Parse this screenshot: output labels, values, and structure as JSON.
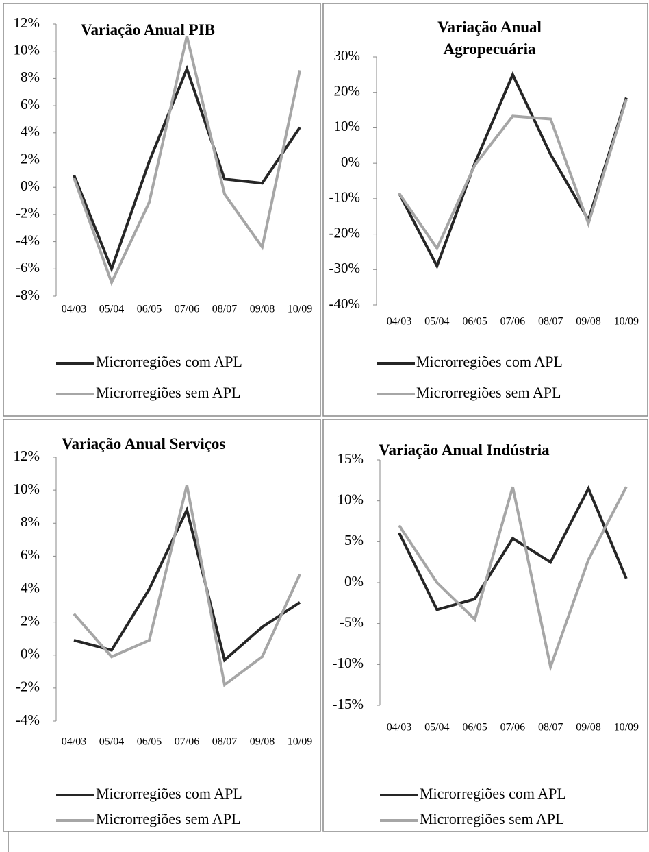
{
  "chart_data": [
    {
      "type": "line",
      "title": "Variação Anual PIB",
      "categories": [
        "04/03",
        "05/04",
        "06/05",
        "07/06",
        "08/07",
        "09/08",
        "10/09"
      ],
      "series": [
        {
          "name": "Microrregiões com APL",
          "color": "#262626",
          "values": [
            0.9,
            -6.0,
            1.9,
            8.7,
            0.6,
            0.3,
            4.4
          ]
        },
        {
          "name": "Microrregiões sem APL",
          "color": "#a6a6a6",
          "values": [
            0.7,
            -7.0,
            -1.1,
            11.1,
            -0.5,
            -4.4,
            8.6
          ]
        }
      ],
      "ylim": [
        -8,
        12
      ],
      "yticks": [
        {
          "value": -8,
          "label": "-8%"
        },
        {
          "value": -6,
          "label": "-6%"
        },
        {
          "value": -4,
          "label": "-4%"
        },
        {
          "value": -2,
          "label": "-2%"
        },
        {
          "value": 0,
          "label": "0%"
        },
        {
          "value": 2,
          "label": "2%"
        },
        {
          "value": 4,
          "label": "4%"
        },
        {
          "value": 6,
          "label": "6%"
        },
        {
          "value": 8,
          "label": "8%"
        },
        {
          "value": 10,
          "label": "10%"
        },
        {
          "value": 12,
          "label": "12%"
        }
      ],
      "legend": "bottom"
    },
    {
      "type": "line",
      "title": "Variação Anual Agropecuária",
      "categories": [
        "04/03",
        "05/04",
        "06/05",
        "07/06",
        "08/07",
        "09/08",
        "10/09"
      ],
      "series": [
        {
          "name": "Microrregiões com APL",
          "color": "#262626",
          "values": [
            -8.5,
            -29,
            0,
            25,
            2.5,
            -16,
            18.5
          ]
        },
        {
          "name": "Microrregiões sem APL",
          "color": "#a6a6a6",
          "values": [
            -8.5,
            -24,
            -0.5,
            13.3,
            12.5,
            -17,
            18
          ]
        }
      ],
      "ylim": [
        -40,
        30
      ],
      "yticks": [
        {
          "value": -40,
          "label": "-40%"
        },
        {
          "value": -30,
          "label": "-30%"
        },
        {
          "value": -20,
          "label": "-20%"
        },
        {
          "value": -10,
          "label": "-10%"
        },
        {
          "value": 0,
          "label": "0%"
        },
        {
          "value": 10,
          "label": "10%"
        },
        {
          "value": 20,
          "label": "20%"
        },
        {
          "value": 30,
          "label": "30%"
        }
      ],
      "legend": "bottom"
    },
    {
      "type": "line",
      "title": "Variação Anual Serviços",
      "categories": [
        "04/03",
        "05/04",
        "06/05",
        "07/06",
        "08/07",
        "09/08",
        "10/09"
      ],
      "series": [
        {
          "name": "Microrregiões com APL",
          "color": "#262626",
          "values": [
            0.9,
            0.3,
            4.0,
            8.8,
            -0.3,
            1.7,
            3.2
          ]
        },
        {
          "name": "Microrregiões sem APL",
          "color": "#a6a6a6",
          "values": [
            2.5,
            -0.1,
            0.9,
            10.3,
            -1.8,
            -0.1,
            4.9
          ]
        }
      ],
      "ylim": [
        -4,
        12
      ],
      "yticks": [
        {
          "value": -4,
          "label": "-4%"
        },
        {
          "value": -2,
          "label": "-2%"
        },
        {
          "value": 0,
          "label": "0%"
        },
        {
          "value": 2,
          "label": "2%"
        },
        {
          "value": 4,
          "label": "4%"
        },
        {
          "value": 6,
          "label": "6%"
        },
        {
          "value": 8,
          "label": "8%"
        },
        {
          "value": 10,
          "label": "10%"
        },
        {
          "value": 12,
          "label": "12%"
        }
      ],
      "legend": "bottom"
    },
    {
      "type": "line",
      "title": "Variação Anual Indústria",
      "categories": [
        "04/03",
        "05/04",
        "06/05",
        "07/06",
        "08/07",
        "09/08",
        "10/09"
      ],
      "series": [
        {
          "name": "Microrregiões com APL",
          "color": "#262626",
          "values": [
            6.1,
            -3.3,
            -2.0,
            5.4,
            2.5,
            11.5,
            0.5
          ]
        },
        {
          "name": "Microrregiões sem APL",
          "color": "#a6a6a6",
          "values": [
            7.0,
            0.0,
            -4.5,
            11.7,
            -10.3,
            2.8,
            11.7
          ]
        }
      ],
      "ylim": [
        -15,
        15
      ],
      "yticks": [
        {
          "value": -15,
          "label": "-15%"
        },
        {
          "value": -10,
          "label": "-10%"
        },
        {
          "value": -5,
          "label": "-5%"
        },
        {
          "value": 0,
          "label": "0%"
        },
        {
          "value": 5,
          "label": "5%"
        },
        {
          "value": 10,
          "label": "10%"
        },
        {
          "value": 15,
          "label": "15%"
        }
      ],
      "legend": "bottom"
    }
  ]
}
